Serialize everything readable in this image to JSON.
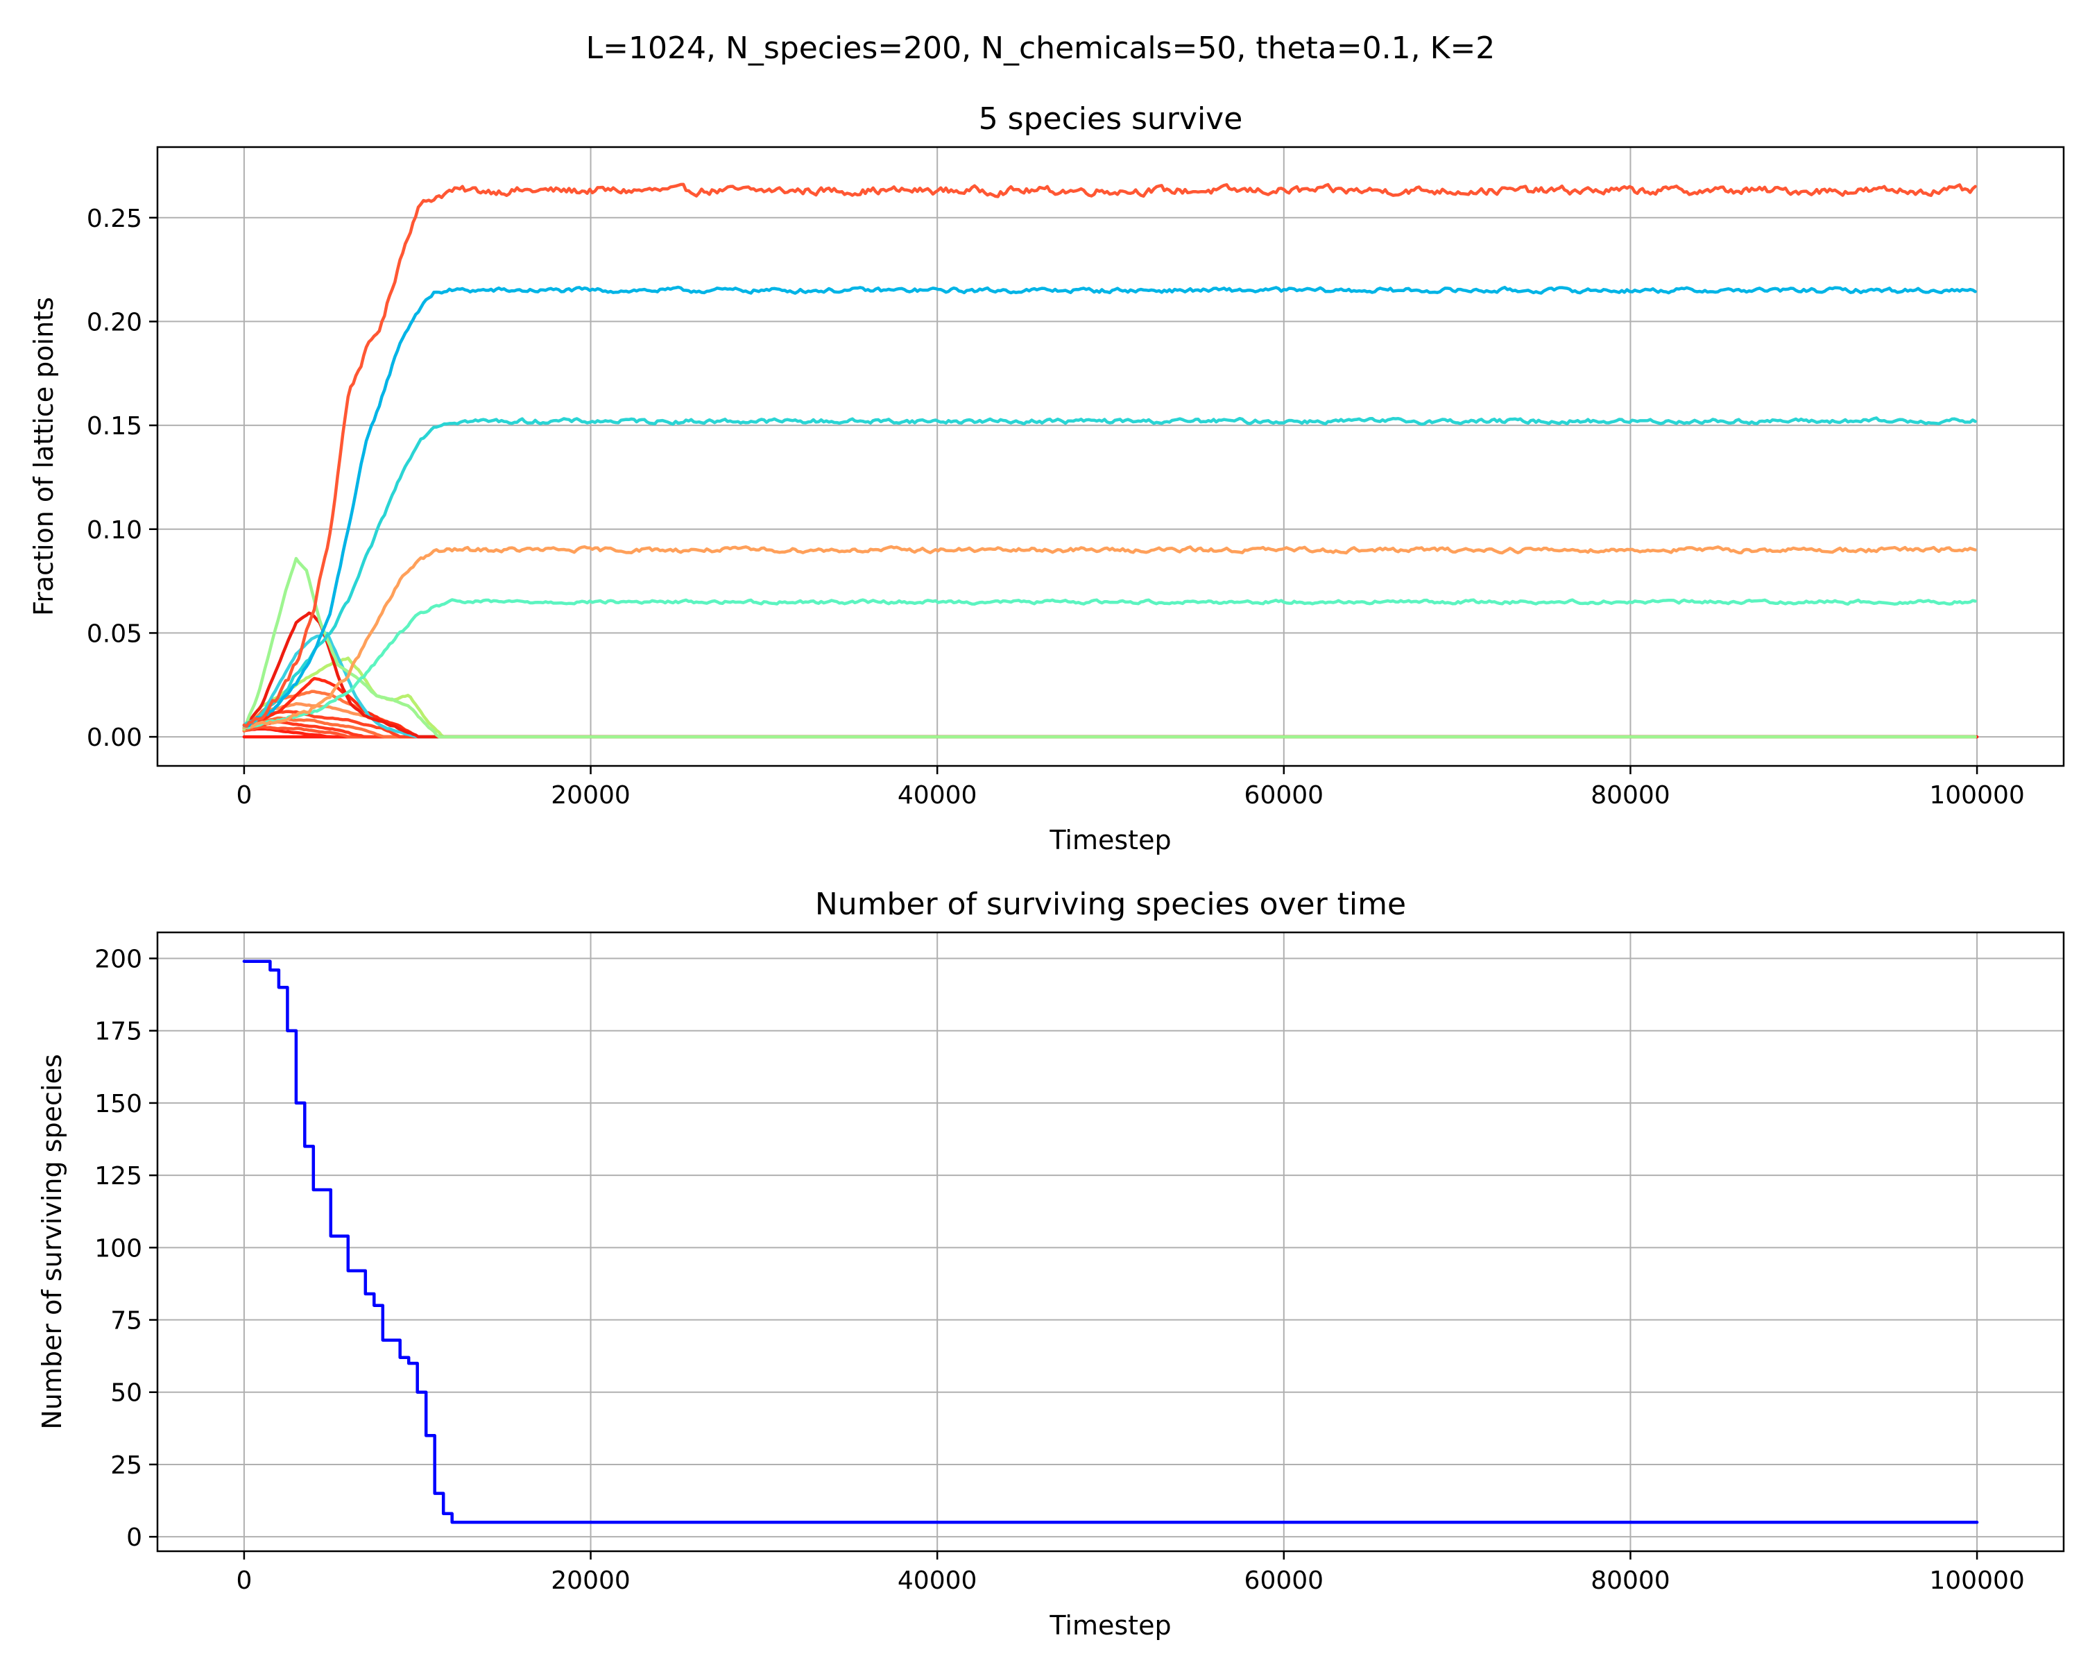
{
  "figure": {
    "suptitle": "L=1024, N_species=200, N_chemicals=50, theta=0.1, K=2"
  },
  "chart_data": [
    {
      "type": "line",
      "title": "5 species survive",
      "xlabel": "Timestep",
      "ylabel": "Fraction of lattice points",
      "xlim": [
        -5000,
        105000
      ],
      "ylim": [
        -0.014,
        0.284
      ],
      "xticks": [
        0,
        20000,
        40000,
        60000,
        80000,
        100000
      ],
      "xtick_labels": [
        "0",
        "20000",
        "40000",
        "60000",
        "80000",
        "100000"
      ],
      "yticks": [
        0,
        0.05,
        0.1,
        0.15,
        0.2,
        0.25
      ],
      "ytick_labels": [
        "0.00",
        "0.05",
        "0.10",
        "0.15",
        "0.20",
        "0.25"
      ],
      "grid": true,
      "colormap": "rainbow",
      "series": [
        {
          "color": "#ff5733",
          "noise": 0.0035,
          "x": [
            0,
            1000,
            2000,
            3000,
            4000,
            5000,
            6000,
            7000,
            8000,
            9000,
            10000,
            11000,
            12000,
            100000
          ],
          "y": [
            0.005,
            0.01,
            0.02,
            0.035,
            0.06,
            0.1,
            0.165,
            0.185,
            0.2,
            0.23,
            0.255,
            0.26,
            0.263,
            0.263
          ]
        },
        {
          "color": "#00b4e6",
          "noise": 0.002,
          "x": [
            0,
            1000,
            2000,
            3000,
            4000,
            5000,
            6000,
            7000,
            8000,
            9000,
            10000,
            11000,
            12000,
            100000
          ],
          "y": [
            0.005,
            0.01,
            0.015,
            0.025,
            0.04,
            0.06,
            0.1,
            0.14,
            0.165,
            0.19,
            0.205,
            0.214,
            0.215,
            0.215
          ]
        },
        {
          "color": "#2ad4d4",
          "noise": 0.002,
          "x": [
            0,
            1000,
            2000,
            3000,
            4000,
            5000,
            6000,
            7000,
            8000,
            9000,
            10000,
            11000,
            12000,
            100000
          ],
          "y": [
            0.005,
            0.01,
            0.018,
            0.03,
            0.04,
            0.05,
            0.065,
            0.085,
            0.105,
            0.125,
            0.142,
            0.15,
            0.152,
            0.152
          ]
        },
        {
          "color": "#ffa05a",
          "noise": 0.002,
          "x": [
            0,
            1000,
            2000,
            3000,
            4000,
            5000,
            6000,
            7000,
            8000,
            9000,
            10000,
            11000,
            12000,
            100000
          ],
          "y": [
            0.004,
            0.006,
            0.008,
            0.01,
            0.014,
            0.02,
            0.03,
            0.045,
            0.06,
            0.075,
            0.085,
            0.089,
            0.09,
            0.09
          ]
        },
        {
          "color": "#5cf4c0",
          "noise": 0.0015,
          "x": [
            0,
            1000,
            2000,
            3000,
            4000,
            5000,
            6000,
            7000,
            8000,
            9000,
            10000,
            11000,
            12000,
            100000
          ],
          "y": [
            0.004,
            0.006,
            0.008,
            0.01,
            0.012,
            0.016,
            0.022,
            0.03,
            0.04,
            0.05,
            0.058,
            0.063,
            0.065,
            0.065
          ]
        },
        {
          "color": "#9ef590",
          "noise": 0.0008,
          "x": [
            0,
            800,
            1600,
            2400,
            3000,
            3600,
            4400,
            5400,
            6600,
            7600,
            8500,
            9500,
            10500,
            11200,
            100000
          ],
          "y": [
            0.004,
            0.02,
            0.045,
            0.07,
            0.086,
            0.08,
            0.055,
            0.035,
            0.028,
            0.02,
            0.018,
            0.015,
            0.006,
            0.0,
            0.0
          ]
        },
        {
          "color": "#ee1c10",
          "noise": 0.0008,
          "x": [
            0,
            1000,
            2000,
            3000,
            3800,
            4400,
            5000,
            5600,
            6200,
            7000,
            8000,
            9000,
            10000,
            100000
          ],
          "y": [
            0.004,
            0.015,
            0.035,
            0.055,
            0.06,
            0.055,
            0.04,
            0.025,
            0.015,
            0.01,
            0.007,
            0.004,
            0.0,
            0.0
          ]
        },
        {
          "color": "#3ad0e0",
          "noise": 0.0008,
          "x": [
            0,
            1000,
            2000,
            3000,
            4000,
            4800,
            5600,
            6400,
            7200,
            8000,
            9000,
            10000,
            100000
          ],
          "y": [
            0.004,
            0.01,
            0.025,
            0.04,
            0.048,
            0.05,
            0.035,
            0.02,
            0.01,
            0.005,
            0.002,
            0.0,
            0.0
          ]
        },
        {
          "color": "#b8f06e",
          "noise": 0.0008,
          "x": [
            0,
            1000,
            2000,
            3000,
            4000,
            5000,
            6000,
            6800,
            7600,
            8500,
            9500,
            10500,
            11500,
            100000
          ],
          "y": [
            0.004,
            0.015,
            0.02,
            0.025,
            0.03,
            0.035,
            0.038,
            0.03,
            0.02,
            0.018,
            0.02,
            0.008,
            0.0,
            0.0
          ]
        },
        {
          "color": "#ff2a14",
          "noise": 0.0006,
          "x": [
            0,
            1000,
            2000,
            3000,
            4000,
            5000,
            6000,
            7000,
            8000,
            9000,
            10000,
            100000
          ],
          "y": [
            0.004,
            0.008,
            0.012,
            0.02,
            0.028,
            0.026,
            0.02,
            0.012,
            0.008,
            0.005,
            0.0,
            0.0
          ]
        },
        {
          "color": "#ff7640",
          "noise": 0.0006,
          "x": [
            0,
            1000,
            2000,
            3000,
            4000,
            5000,
            6000,
            7000,
            8000,
            9000,
            10000,
            100000
          ],
          "y": [
            0.003,
            0.012,
            0.018,
            0.02,
            0.022,
            0.02,
            0.016,
            0.012,
            0.008,
            0.005,
            0.0,
            0.0
          ]
        },
        {
          "color": "#ff9458",
          "noise": 0.0005,
          "x": [
            0,
            1000,
            2000,
            3000,
            4000,
            5000,
            6000,
            7000,
            8000,
            9000,
            10000,
            100000
          ],
          "y": [
            0.003,
            0.012,
            0.014,
            0.016,
            0.015,
            0.014,
            0.012,
            0.01,
            0.008,
            0.005,
            0.0,
            0.0
          ]
        },
        {
          "color": "#ff4424",
          "noise": 0.0005,
          "x": [
            0,
            1000,
            2000,
            3000,
            4000,
            5000,
            6000,
            7000,
            8000,
            9000,
            100000
          ],
          "y": [
            0.003,
            0.01,
            0.012,
            0.012,
            0.01,
            0.009,
            0.008,
            0.006,
            0.004,
            0.0,
            0.0
          ]
        },
        {
          "color": "#ff6e3c",
          "noise": 0.0004,
          "x": [
            0,
            1000,
            2000,
            3000,
            4000,
            5000,
            6000,
            7000,
            8000,
            100000
          ],
          "y": [
            0.003,
            0.007,
            0.009,
            0.008,
            0.008,
            0.006,
            0.005,
            0.003,
            0.0,
            0.0
          ]
        },
        {
          "color": "#ff3a1e",
          "noise": 0.0004,
          "x": [
            0,
            1000,
            2000,
            3000,
            4000,
            5000,
            6000,
            7000,
            100000
          ],
          "y": [
            0.003,
            0.006,
            0.007,
            0.006,
            0.005,
            0.004,
            0.002,
            0.0,
            0.0
          ]
        },
        {
          "color": "#ff5530",
          "noise": 0.0004,
          "x": [
            0,
            1000,
            2000,
            3000,
            4000,
            5000,
            6000,
            100000
          ],
          "y": [
            0.003,
            0.005,
            0.004,
            0.004,
            0.003,
            0.002,
            0.0,
            0.0
          ]
        },
        {
          "color": "#ff2010",
          "noise": 0.0003,
          "x": [
            0,
            1000,
            2000,
            3000,
            4000,
            5000,
            100000
          ],
          "y": [
            0.003,
            0.004,
            0.003,
            0.002,
            0.001,
            0.0,
            0.0
          ]
        },
        {
          "color": "#ff1a0e",
          "noise": 0.0,
          "x": [
            0,
            100000
          ],
          "y": [
            0.0,
            0.0
          ]
        }
      ]
    },
    {
      "type": "line",
      "title": "Number of surviving species over time",
      "xlabel": "Timestep",
      "ylabel": "Number of surviving species",
      "xlim": [
        -5000,
        105000
      ],
      "ylim": [
        -5,
        209
      ],
      "xticks": [
        0,
        20000,
        40000,
        60000,
        80000,
        100000
      ],
      "xtick_labels": [
        "0",
        "20000",
        "40000",
        "60000",
        "80000",
        "100000"
      ],
      "yticks": [
        0,
        25,
        50,
        75,
        100,
        125,
        150,
        175,
        200
      ],
      "ytick_labels": [
        "0",
        "25",
        "50",
        "75",
        "100",
        "125",
        "150",
        "175",
        "200"
      ],
      "grid": true,
      "series": [
        {
          "color": "#0000ff",
          "x": [
            0,
            1000,
            1500,
            2000,
            2500,
            3000,
            3500,
            4000,
            5000,
            6000,
            7000,
            7500,
            8000,
            9000,
            9500,
            10000,
            10500,
            11000,
            11500,
            12000,
            100000
          ],
          "y": [
            199,
            199,
            196,
            190,
            175,
            150,
            135,
            120,
            104,
            92,
            84,
            80,
            68,
            62,
            60,
            50,
            35,
            15,
            8,
            5,
            5
          ]
        }
      ]
    }
  ]
}
